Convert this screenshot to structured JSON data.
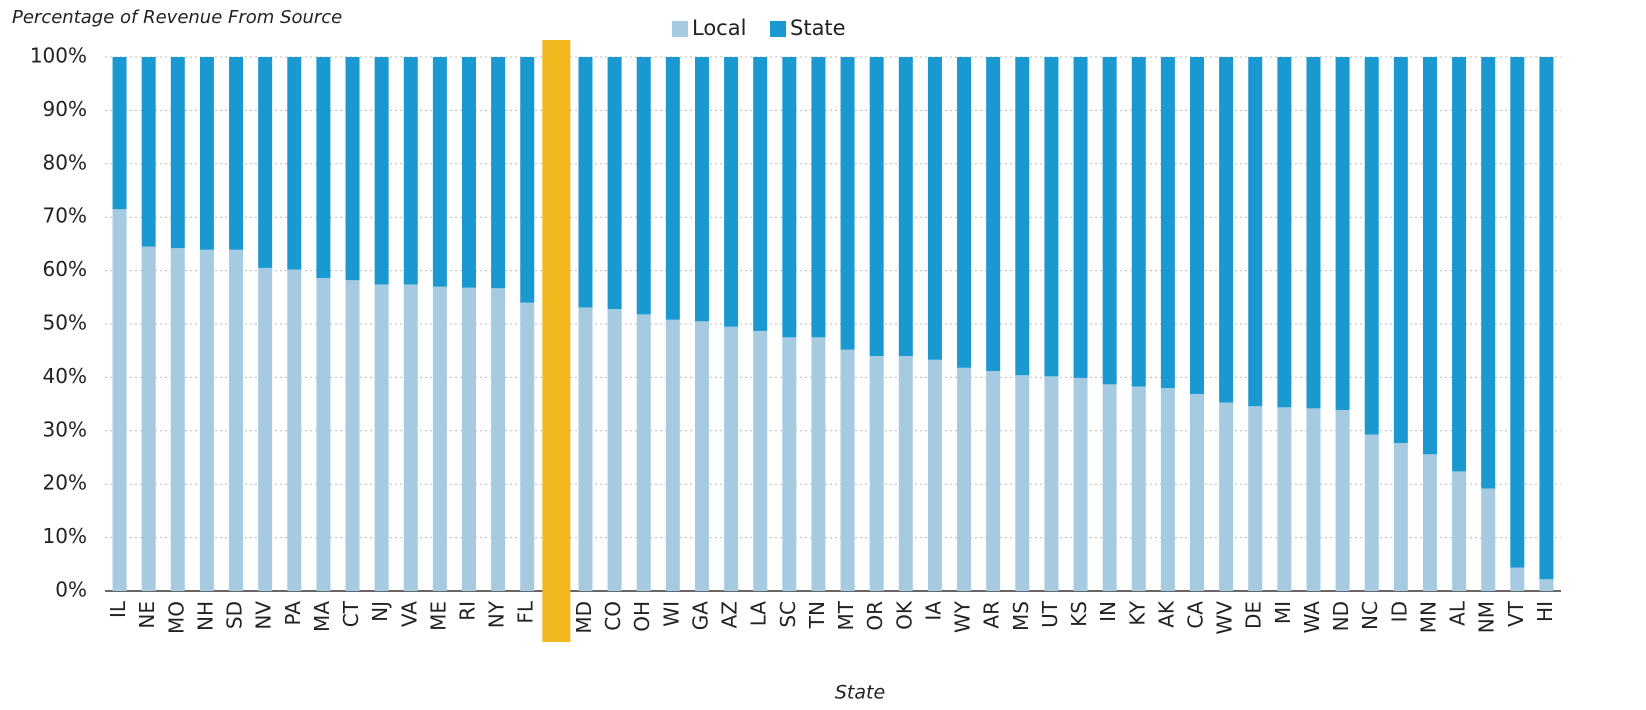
{
  "chart_data": {
    "type": "stacked_bar",
    "title": "Percentage of Revenue From Source",
    "xlabel": "State",
    "categories": [
      "IL",
      "NE",
      "MO",
      "NH",
      "SD",
      "NV",
      "PA",
      "MA",
      "CT",
      "NJ",
      "VA",
      "ME",
      "RI",
      "NY",
      "FL",
      null,
      "MD",
      "CO",
      "OH",
      "WI",
      "GA",
      "AZ",
      "LA",
      "SC",
      "TN",
      "MT",
      "OR",
      "OK",
      "IA",
      "WY",
      "AR",
      "MS",
      "UT",
      "KS",
      "IN",
      "KY",
      "AK",
      "CA",
      "WV",
      "DE",
      "MI",
      "WA",
      "ND",
      "NC",
      "ID",
      "MN",
      "AL",
      "NM",
      "VT",
      "HI"
    ],
    "series": [
      {
        "name": "Local",
        "color": "#a6cbe0",
        "values": [
          71.5,
          64.5,
          64.2,
          63.9,
          63.9,
          60.5,
          60.2,
          58.6,
          58.2,
          57.4,
          57.4,
          57.0,
          56.8,
          56.7,
          54.0,
          null,
          53.1,
          52.8,
          51.8,
          50.8,
          50.5,
          49.5,
          48.7,
          47.5,
          47.5,
          45.2,
          44.0,
          44.0,
          43.3,
          41.8,
          41.2,
          40.4,
          40.2,
          39.9,
          38.7,
          38.3,
          38.0,
          36.9,
          35.3,
          34.6,
          34.4,
          34.2,
          33.9,
          29.3,
          27.7,
          25.6,
          22.4,
          19.2,
          4.4,
          2.2
        ]
      },
      {
        "name": "State",
        "color": "#1a98d0",
        "values": [
          28.5,
          35.5,
          35.8,
          36.1,
          36.1,
          39.5,
          39.8,
          41.4,
          41.8,
          42.6,
          42.6,
          43.0,
          43.2,
          43.3,
          46.0,
          null,
          46.9,
          47.2,
          48.2,
          49.2,
          49.5,
          50.5,
          51.3,
          52.5,
          52.5,
          54.8,
          56.0,
          56.0,
          56.7,
          58.2,
          58.8,
          59.6,
          59.8,
          60.1,
          61.3,
          61.7,
          62.0,
          63.1,
          64.7,
          65.4,
          65.6,
          65.8,
          66.1,
          70.7,
          72.3,
          74.4,
          77.6,
          80.8,
          95.6,
          97.8
        ]
      }
    ],
    "highlight_color": "#f0b81c",
    "ylim": [
      0,
      100
    ],
    "yticks": [
      {
        "value": 0,
        "label": "0%"
      },
      {
        "value": 10,
        "label": "10%"
      },
      {
        "value": 20,
        "label": "20%"
      },
      {
        "value": 30,
        "label": "30%"
      },
      {
        "value": 40,
        "label": "40%"
      },
      {
        "value": 50,
        "label": "50%"
      },
      {
        "value": 60,
        "label": "60%"
      },
      {
        "value": 70,
        "label": "70%"
      },
      {
        "value": 80,
        "label": "80%"
      },
      {
        "value": 90,
        "label": "90%"
      },
      {
        "value": 100,
        "label": "100%"
      }
    ],
    "grid": true,
    "legend": "top"
  }
}
